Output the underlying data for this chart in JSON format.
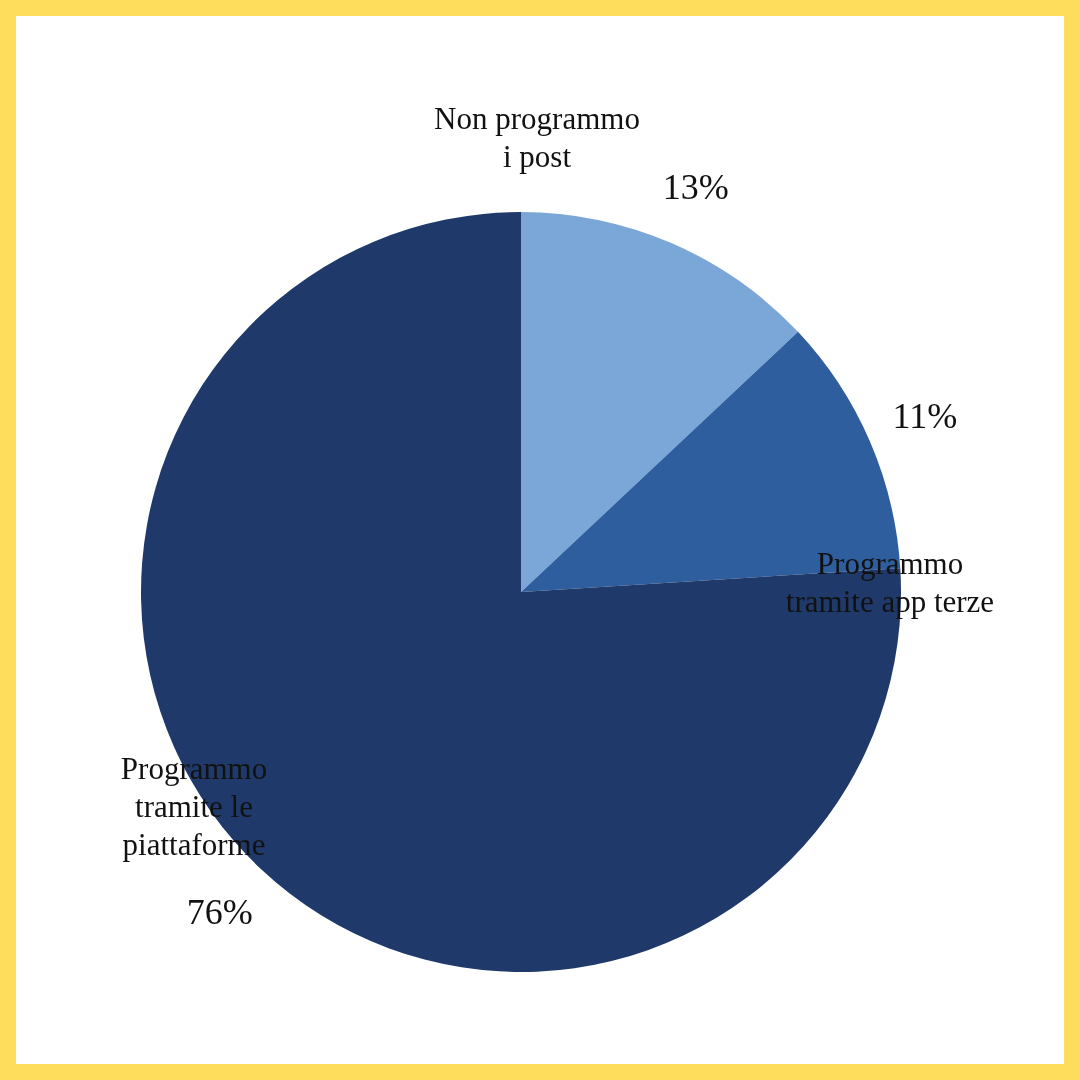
{
  "chart_data": {
    "type": "pie",
    "categories": [
      "Non programmo i post",
      "Programmo tramite app terze",
      "Programmo tramite le piattaforme"
    ],
    "values": [
      13,
      11,
      76
    ],
    "colors": [
      "#7ba7d8",
      "#2f5e9e",
      "#1f3a6a"
    ],
    "value_labels": [
      "13%",
      "11%",
      "76%"
    ]
  }
}
